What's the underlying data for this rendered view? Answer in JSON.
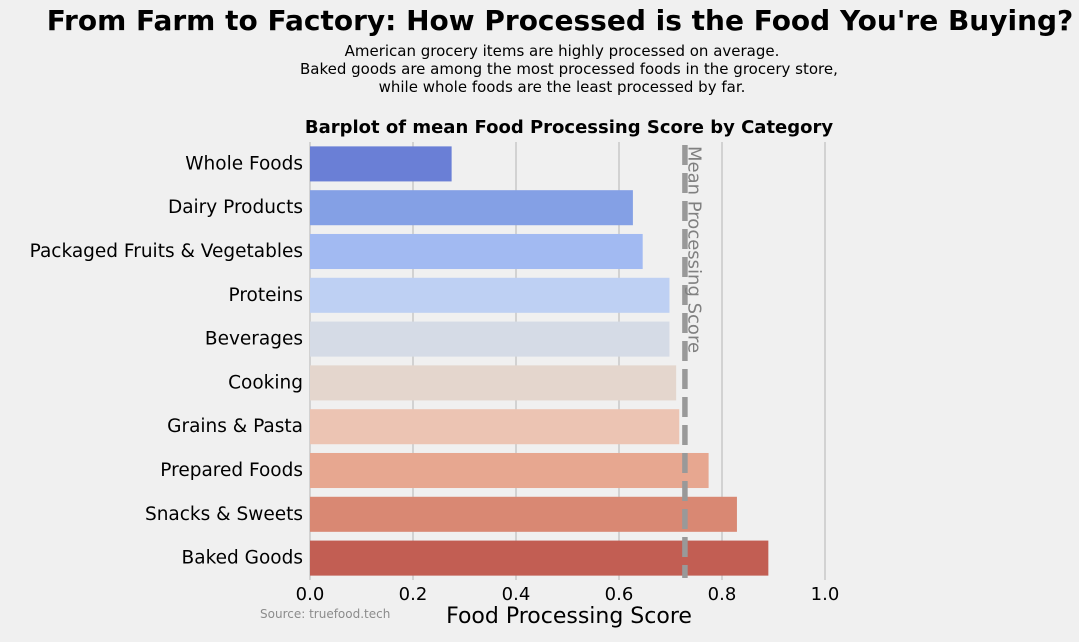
{
  "figure": {
    "title": "From Farm to Factory: How Processed is the Food You're Buying?",
    "subtitle_lines": [
      "American grocery items are highly processed on average.",
      "Baked goods are among the most processed foods in the grocery store,",
      "while whole foods are the least processed by far."
    ],
    "source": "Source: truefood.tech"
  },
  "chart_data": {
    "type": "bar",
    "orientation": "horizontal",
    "title": "Barplot of mean Food Processing Score by Category",
    "xlabel": "Food Processing Score",
    "ylabel": "",
    "categories": [
      "Whole Foods",
      "Dairy Products",
      "Packaged Fruits & Vegetables",
      "Proteins",
      "Beverages",
      "Cooking",
      "Grains & Pasta",
      "Prepared Foods",
      "Snacks & Sweets",
      "Baked Goods"
    ],
    "values": [
      0.275,
      0.627,
      0.646,
      0.698,
      0.698,
      0.711,
      0.717,
      0.774,
      0.829,
      0.89
    ],
    "colors": [
      "#6a7fd6",
      "#84a0e5",
      "#a2baf2",
      "#bed0f3",
      "#d5dbe6",
      "#e4d6cd",
      "#ecc4b3",
      "#e7a790",
      "#d98873",
      "#c25e53"
    ],
    "xlim": [
      0,
      1.05
    ],
    "xticks": [
      "0.0",
      "0.2",
      "0.4",
      "0.6",
      "0.8",
      "1.0"
    ],
    "xtick_values": [
      0,
      0.2,
      0.4,
      0.6,
      0.8,
      1.0
    ],
    "grid": "vertical",
    "reference_line": {
      "label": "Mean Processing Score",
      "value": 0.728,
      "color": "#999999",
      "style": "dashed"
    }
  }
}
